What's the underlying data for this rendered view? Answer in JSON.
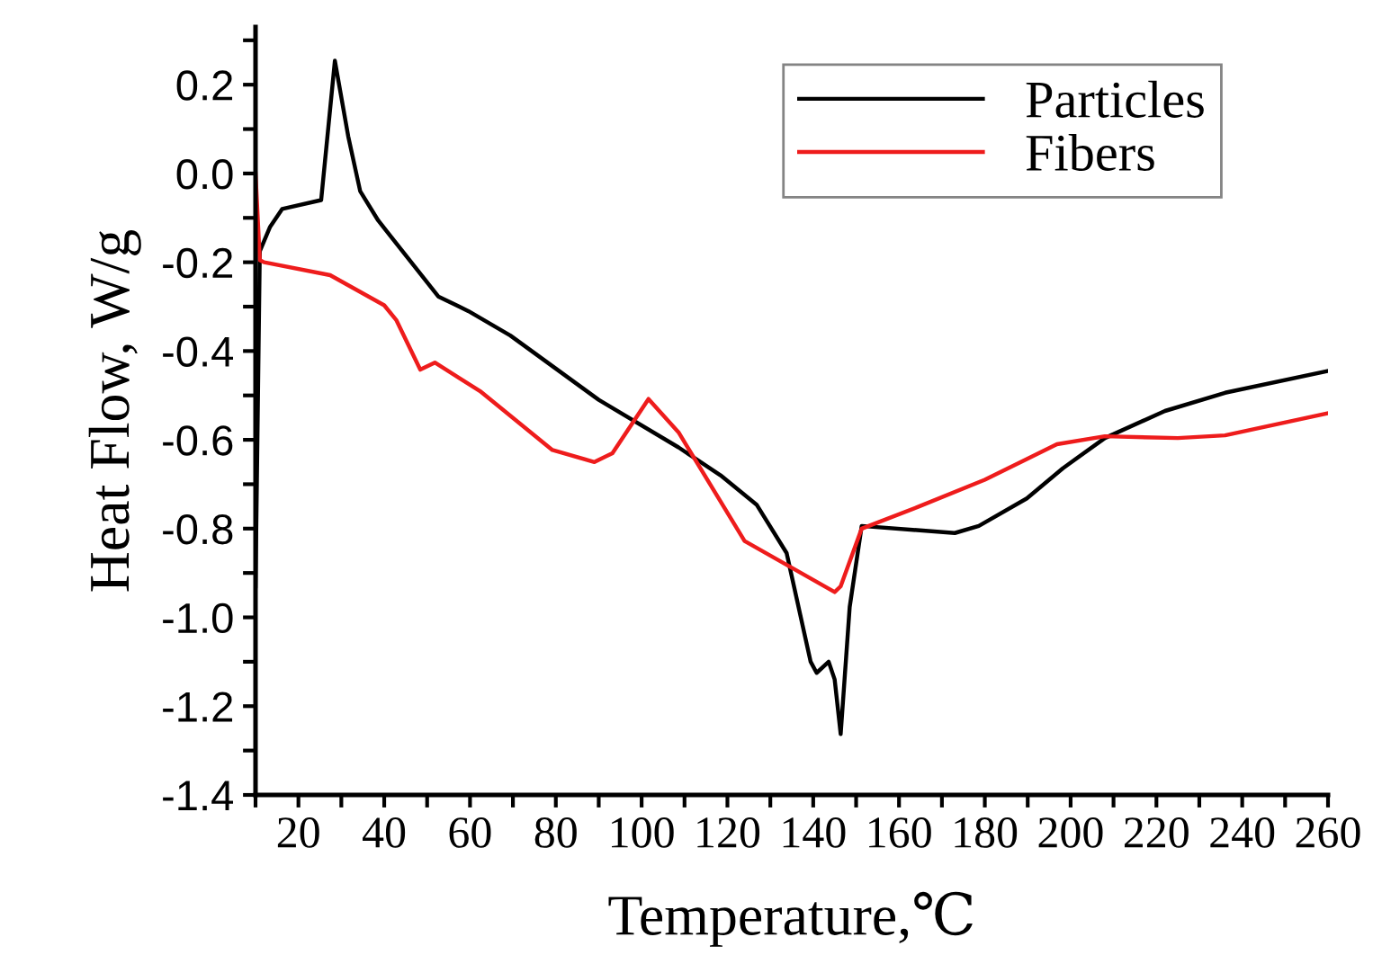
{
  "chart_data": {
    "type": "line",
    "xlabel": "Temperature,℃",
    "ylabel": "Heat Flow, W/g",
    "xlim": [
      10,
      260
    ],
    "ylim": [
      -1.4,
      0.33
    ],
    "xticks": [
      {
        "value": 10,
        "label": null
      },
      20,
      {
        "value": 30,
        "label": null
      },
      40,
      {
        "value": 50,
        "label": null
      },
      60,
      {
        "value": 70,
        "label": null
      },
      80,
      {
        "value": 90,
        "label": null
      },
      100,
      {
        "value": 110,
        "label": null
      },
      120,
      {
        "value": 130,
        "label": null
      },
      140,
      {
        "value": 150,
        "label": null
      },
      160,
      {
        "value": 170,
        "label": null
      },
      180,
      {
        "value": 190,
        "label": null
      },
      200,
      {
        "value": 210,
        "label": null
      },
      220,
      {
        "value": 230,
        "label": null
      },
      240,
      {
        "value": 250,
        "label": null
      },
      260
    ],
    "yticks": [
      {
        "value": -1.4,
        "label": "-1.4"
      },
      {
        "value": -1.3,
        "label": null
      },
      {
        "value": -1.2,
        "label": "-1.2"
      },
      {
        "value": -1.1,
        "label": null
      },
      {
        "value": -1.0,
        "label": "-1.0"
      },
      {
        "value": -0.9,
        "label": null
      },
      {
        "value": -0.8,
        "label": "-0.8"
      },
      {
        "value": -0.7,
        "label": null
      },
      {
        "value": -0.6,
        "label": "-0.6"
      },
      {
        "value": -0.5,
        "label": null
      },
      {
        "value": -0.4,
        "label": "-0.4"
      },
      {
        "value": -0.3,
        "label": null
      },
      {
        "value": -0.2,
        "label": "-0.2"
      },
      {
        "value": -0.1,
        "label": null
      },
      {
        "value": 0.0,
        "label": "0.0"
      },
      {
        "value": 0.1,
        "label": null
      },
      {
        "value": 0.2,
        "label": "0.2"
      },
      {
        "value": 0.3,
        "label": null
      }
    ],
    "grid": false,
    "legend": "top right",
    "line_style": "solid",
    "series": [
      {
        "name": "Particles",
        "color": "#000000",
        "x": [
          10,
          11,
          13.4,
          16.2,
          25.3,
          28.5,
          31.6,
          34.4,
          38.6,
          52.6,
          59.6,
          69.4,
          90,
          108.6,
          118.4,
          126.8,
          133.8,
          139.4,
          140.8,
          143.6,
          145,
          146.4,
          148.5,
          151.3,
          173,
          178.6,
          189.8,
          198.2,
          208,
          222,
          236,
          260
        ],
        "values": [
          -0.93,
          -0.175,
          -0.12,
          -0.08,
          -0.06,
          0.254,
          0.084,
          -0.04,
          -0.106,
          -0.277,
          -0.31,
          -0.365,
          -0.51,
          -0.617,
          -0.68,
          -0.746,
          -0.855,
          -1.1,
          -1.125,
          -1.1,
          -1.14,
          -1.263,
          -0.977,
          -0.794,
          -0.81,
          -0.794,
          -0.732,
          -0.664,
          -0.596,
          -0.535,
          -0.494,
          -0.445
        ]
      },
      {
        "name": "Fibers",
        "color": "#ee1c1c",
        "x": [
          10,
          11,
          12,
          27.4,
          40,
          42.8,
          48.4,
          51.8,
          62.3,
          79.2,
          89,
          93.2,
          101.6,
          108.6,
          124,
          145,
          146.4,
          151.3,
          164.7,
          180,
          196.8,
          208,
          225,
          236,
          260
        ],
        "values": [
          0.0,
          -0.195,
          -0.2,
          -0.229,
          -0.297,
          -0.33,
          -0.442,
          -0.426,
          -0.49,
          -0.623,
          -0.65,
          -0.63,
          -0.508,
          -0.583,
          -0.828,
          -0.943,
          -0.93,
          -0.8,
          -0.75,
          -0.69,
          -0.61,
          -0.592,
          -0.596,
          -0.59,
          -0.54
        ]
      }
    ]
  }
}
